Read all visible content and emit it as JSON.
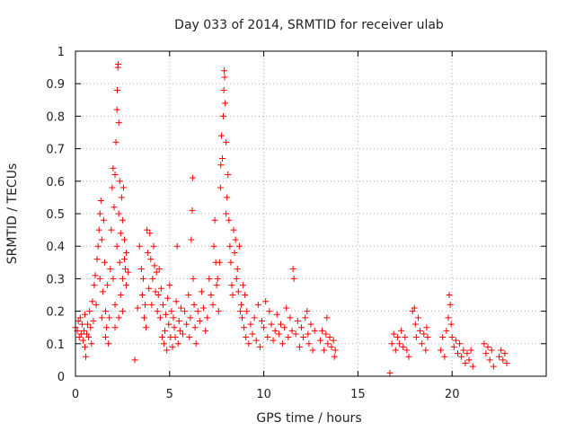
{
  "chart_data": {
    "type": "scatter",
    "title": "Day 033 of 2014, SRMTID for receiver ulab",
    "xlabel": "GPS time / hours",
    "ylabel": "SRMTID / TECUs",
    "xlim": [
      0,
      25
    ],
    "ylim": [
      0,
      1
    ],
    "xticks": [
      0,
      5,
      10,
      15,
      20
    ],
    "xtick_labels": [
      "0",
      "5",
      "10",
      "15",
      "20"
    ],
    "yticks": [
      0,
      0.1,
      0.2,
      0.3,
      0.4,
      0.5,
      0.6,
      0.7,
      0.8,
      0.9,
      1
    ],
    "ytick_labels": [
      "0",
      "0.1",
      "0.2",
      "0.3",
      "0.4",
      "0.5",
      "0.6",
      "0.7",
      "0.8",
      "0.9",
      "1"
    ],
    "grid": true,
    "marker": "+",
    "marker_color": "#ff0000",
    "series": [
      {
        "name": "SRMTID",
        "points": [
          [
            0.0,
            0.15
          ],
          [
            0.1,
            0.14
          ],
          [
            0.15,
            0.17
          ],
          [
            0.2,
            0.12
          ],
          [
            0.25,
            0.18
          ],
          [
            0.3,
            0.13
          ],
          [
            0.35,
            0.16
          ],
          [
            0.4,
            0.11
          ],
          [
            0.45,
            0.14
          ],
          [
            0.5,
            0.09
          ],
          [
            0.5,
            0.19
          ],
          [
            0.55,
            0.06
          ],
          [
            0.6,
            0.13
          ],
          [
            0.65,
            0.16
          ],
          [
            0.7,
            0.12
          ],
          [
            0.75,
            0.2
          ],
          [
            0.8,
            0.15
          ],
          [
            0.85,
            0.1
          ],
          [
            0.9,
            0.23
          ],
          [
            0.95,
            0.17
          ],
          [
            1.0,
            0.28
          ],
          [
            1.05,
            0.31
          ],
          [
            1.1,
            0.22
          ],
          [
            1.15,
            0.36
          ],
          [
            1.2,
            0.4
          ],
          [
            1.25,
            0.45
          ],
          [
            1.3,
            0.5
          ],
          [
            1.3,
            0.3
          ],
          [
            1.35,
            0.54
          ],
          [
            1.4,
            0.42
          ],
          [
            1.4,
            0.18
          ],
          [
            1.45,
            0.26
          ],
          [
            1.5,
            0.48
          ],
          [
            1.55,
            0.35
          ],
          [
            1.6,
            0.2
          ],
          [
            1.6,
            0.12
          ],
          [
            1.65,
            0.15
          ],
          [
            1.7,
            0.28
          ],
          [
            1.75,
            0.1
          ],
          [
            1.8,
            0.18
          ],
          [
            1.85,
            0.33
          ],
          [
            1.9,
            0.45
          ],
          [
            1.95,
            0.58
          ],
          [
            2.0,
            0.64
          ],
          [
            2.0,
            0.3
          ],
          [
            2.05,
            0.52
          ],
          [
            2.1,
            0.62
          ],
          [
            2.1,
            0.22
          ],
          [
            2.15,
            0.72
          ],
          [
            2.2,
            0.82
          ],
          [
            2.2,
            0.4
          ],
          [
            2.22,
            0.88
          ],
          [
            2.25,
            0.95
          ],
          [
            2.27,
            0.96
          ],
          [
            2.3,
            0.78
          ],
          [
            2.3,
            0.5
          ],
          [
            2.35,
            0.6
          ],
          [
            2.35,
            0.35
          ],
          [
            2.4,
            0.44
          ],
          [
            2.4,
            0.25
          ],
          [
            2.45,
            0.55
          ],
          [
            2.5,
            0.48
          ],
          [
            2.5,
            0.3
          ],
          [
            2.55,
            0.58
          ],
          [
            2.6,
            0.42
          ],
          [
            2.6,
            0.36
          ],
          [
            2.65,
            0.33
          ],
          [
            2.7,
            0.28
          ],
          [
            2.7,
            0.38
          ],
          [
            2.1,
            0.15
          ],
          [
            2.3,
            0.18
          ],
          [
            2.5,
            0.2
          ],
          [
            2.8,
            0.32
          ],
          [
            3.15,
            0.05
          ],
          [
            3.3,
            0.21
          ],
          [
            3.4,
            0.4
          ],
          [
            3.5,
            0.33
          ],
          [
            3.55,
            0.25
          ],
          [
            3.6,
            0.3
          ],
          [
            3.65,
            0.18
          ],
          [
            3.7,
            0.22
          ],
          [
            3.75,
            0.15
          ],
          [
            3.8,
            0.45
          ],
          [
            3.85,
            0.38
          ],
          [
            3.9,
            0.27
          ],
          [
            3.95,
            0.44
          ],
          [
            4.0,
            0.36
          ],
          [
            4.05,
            0.22
          ],
          [
            4.1,
            0.3
          ],
          [
            4.15,
            0.4
          ],
          [
            4.2,
            0.34
          ],
          [
            4.25,
            0.26
          ],
          [
            4.3,
            0.32
          ],
          [
            4.35,
            0.2
          ],
          [
            4.4,
            0.25
          ],
          [
            4.45,
            0.33
          ],
          [
            4.5,
            0.18
          ],
          [
            4.55,
            0.27
          ],
          [
            4.6,
            0.12
          ],
          [
            4.65,
            0.22
          ],
          [
            4.7,
            0.1
          ],
          [
            4.75,
            0.14
          ],
          [
            4.8,
            0.19
          ],
          [
            4.85,
            0.08
          ],
          [
            4.9,
            0.24
          ],
          [
            4.95,
            0.16
          ],
          [
            5.0,
            0.28
          ],
          [
            5.05,
            0.12
          ],
          [
            5.1,
            0.2
          ],
          [
            5.15,
            0.09
          ],
          [
            5.2,
            0.18
          ],
          [
            5.25,
            0.15
          ],
          [
            5.3,
            0.12
          ],
          [
            5.35,
            0.23
          ],
          [
            5.4,
            0.4
          ],
          [
            5.45,
            0.1
          ],
          [
            5.5,
            0.17
          ],
          [
            5.55,
            0.14
          ],
          [
            5.6,
            0.21
          ],
          [
            5.7,
            0.13
          ],
          [
            5.8,
            0.2
          ],
          [
            5.9,
            0.16
          ],
          [
            6.0,
            0.25
          ],
          [
            6.05,
            0.12
          ],
          [
            6.1,
            0.18
          ],
          [
            6.15,
            0.42
          ],
          [
            6.2,
            0.51
          ],
          [
            6.22,
            0.61
          ],
          [
            6.25,
            0.3
          ],
          [
            6.3,
            0.22
          ],
          [
            6.35,
            0.15
          ],
          [
            6.4,
            0.1
          ],
          [
            6.5,
            0.2
          ],
          [
            6.6,
            0.17
          ],
          [
            6.7,
            0.26
          ],
          [
            6.8,
            0.21
          ],
          [
            6.9,
            0.14
          ],
          [
            7.0,
            0.18
          ],
          [
            7.1,
            0.3
          ],
          [
            7.2,
            0.25
          ],
          [
            7.3,
            0.22
          ],
          [
            7.35,
            0.4
          ],
          [
            7.4,
            0.48
          ],
          [
            7.45,
            0.35
          ],
          [
            7.5,
            0.28
          ],
          [
            7.55,
            0.3
          ],
          [
            7.6,
            0.2
          ],
          [
            7.65,
            0.35
          ],
          [
            7.7,
            0.58
          ],
          [
            7.72,
            0.65
          ],
          [
            7.75,
            0.74
          ],
          [
            7.8,
            0.67
          ],
          [
            7.85,
            0.8
          ],
          [
            7.88,
            0.88
          ],
          [
            7.9,
            0.94
          ],
          [
            7.92,
            0.92
          ],
          [
            7.95,
            0.84
          ],
          [
            8.0,
            0.72
          ],
          [
            8.0,
            0.5
          ],
          [
            8.05,
            0.55
          ],
          [
            8.1,
            0.62
          ],
          [
            8.15,
            0.48
          ],
          [
            8.2,
            0.4
          ],
          [
            8.25,
            0.35
          ],
          [
            8.3,
            0.28
          ],
          [
            8.35,
            0.25
          ],
          [
            8.4,
            0.45
          ],
          [
            8.45,
            0.38
          ],
          [
            8.5,
            0.42
          ],
          [
            8.55,
            0.3
          ],
          [
            8.6,
            0.33
          ],
          [
            8.65,
            0.26
          ],
          [
            8.7,
            0.4
          ],
          [
            8.75,
            0.2
          ],
          [
            8.8,
            0.22
          ],
          [
            8.85,
            0.18
          ],
          [
            8.9,
            0.28
          ],
          [
            8.95,
            0.15
          ],
          [
            9.0,
            0.25
          ],
          [
            9.05,
            0.12
          ],
          [
            9.1,
            0.2
          ],
          [
            9.2,
            0.1
          ],
          [
            9.3,
            0.16
          ],
          [
            9.4,
            0.13
          ],
          [
            9.5,
            0.18
          ],
          [
            9.6,
            0.11
          ],
          [
            9.7,
            0.22
          ],
          [
            9.8,
            0.09
          ],
          [
            9.9,
            0.17
          ],
          [
            10.0,
            0.15
          ],
          [
            10.1,
            0.23
          ],
          [
            10.2,
            0.12
          ],
          [
            10.3,
            0.2
          ],
          [
            10.4,
            0.16
          ],
          [
            10.5,
            0.11
          ],
          [
            10.6,
            0.14
          ],
          [
            10.7,
            0.19
          ],
          [
            10.8,
            0.13
          ],
          [
            10.9,
            0.16
          ],
          [
            11.0,
            0.1
          ],
          [
            11.1,
            0.15
          ],
          [
            11.2,
            0.21
          ],
          [
            11.3,
            0.12
          ],
          [
            11.4,
            0.18
          ],
          [
            11.5,
            0.14
          ],
          [
            11.55,
            0.33
          ],
          [
            11.6,
            0.3
          ],
          [
            11.7,
            0.13
          ],
          [
            11.8,
            0.17
          ],
          [
            11.9,
            0.09
          ],
          [
            12.0,
            0.15
          ],
          [
            12.1,
            0.12
          ],
          [
            12.2,
            0.18
          ],
          [
            12.3,
            0.2
          ],
          [
            12.35,
            0.13
          ],
          [
            12.4,
            0.1
          ],
          [
            12.5,
            0.16
          ],
          [
            12.6,
            0.08
          ],
          [
            12.7,
            0.14
          ],
          [
            13.0,
            0.11
          ],
          [
            13.1,
            0.14
          ],
          [
            13.2,
            0.08
          ],
          [
            13.3,
            0.13
          ],
          [
            13.35,
            0.18
          ],
          [
            13.4,
            0.1
          ],
          [
            13.5,
            0.12
          ],
          [
            13.6,
            0.09
          ],
          [
            13.7,
            0.11
          ],
          [
            13.75,
            0.06
          ],
          [
            13.8,
            0.08
          ],
          [
            16.7,
            0.01
          ],
          [
            16.8,
            0.1
          ],
          [
            16.9,
            0.13
          ],
          [
            17.0,
            0.08
          ],
          [
            17.1,
            0.12
          ],
          [
            17.2,
            0.1
          ],
          [
            17.3,
            0.14
          ],
          [
            17.4,
            0.09
          ],
          [
            17.5,
            0.12
          ],
          [
            17.6,
            0.08
          ],
          [
            17.7,
            0.06
          ],
          [
            17.9,
            0.2
          ],
          [
            18.0,
            0.21
          ],
          [
            18.05,
            0.16
          ],
          [
            18.1,
            0.12
          ],
          [
            18.2,
            0.18
          ],
          [
            18.3,
            0.14
          ],
          [
            18.4,
            0.1
          ],
          [
            18.5,
            0.13
          ],
          [
            18.6,
            0.08
          ],
          [
            18.65,
            0.15
          ],
          [
            18.7,
            0.12
          ],
          [
            19.4,
            0.08
          ],
          [
            19.5,
            0.12
          ],
          [
            19.6,
            0.06
          ],
          [
            19.7,
            0.14
          ],
          [
            19.8,
            0.18
          ],
          [
            19.85,
            0.25
          ],
          [
            19.9,
            0.22
          ],
          [
            19.95,
            0.16
          ],
          [
            20.0,
            0.12
          ],
          [
            20.1,
            0.09
          ],
          [
            20.2,
            0.11
          ],
          [
            20.3,
            0.07
          ],
          [
            20.4,
            0.1
          ],
          [
            20.5,
            0.06
          ],
          [
            20.6,
            0.08
          ],
          [
            20.7,
            0.04
          ],
          [
            20.8,
            0.07
          ],
          [
            20.9,
            0.05
          ],
          [
            21.0,
            0.08
          ],
          [
            21.1,
            0.03
          ],
          [
            21.7,
            0.1
          ],
          [
            21.8,
            0.07
          ],
          [
            21.9,
            0.09
          ],
          [
            22.0,
            0.05
          ],
          [
            22.1,
            0.08
          ],
          [
            22.2,
            0.03
          ],
          [
            22.5,
            0.06
          ],
          [
            22.6,
            0.08
          ],
          [
            22.7,
            0.05
          ],
          [
            22.8,
            0.07
          ],
          [
            22.9,
            0.04
          ]
        ]
      }
    ]
  }
}
